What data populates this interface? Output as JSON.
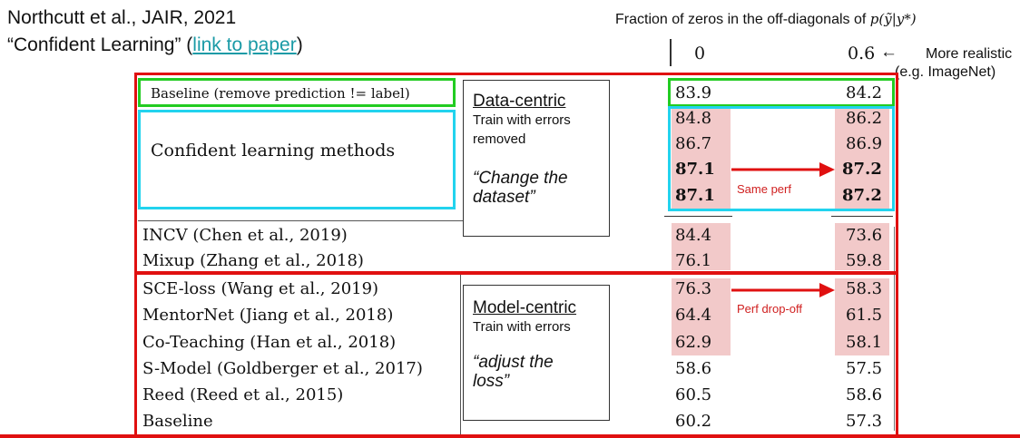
{
  "citation": {
    "line1": "Northcutt et al., JAIR, 2021",
    "line2_prefix": "“Confident Learning” (",
    "link_text": "link to paper",
    "line2_suffix": ")"
  },
  "header": {
    "caption": "Fraction of zeros in the off-diagonals of",
    "formula": "p(ỹ|y*)",
    "col1": "0",
    "col2": "0.6",
    "arrow": "←",
    "more_realistic": "More realistic",
    "example": "(e.g. ImageNet)"
  },
  "table": {
    "top_rows": [
      {
        "method": "Baseline (remove prediction != label)",
        "v1": "83.9",
        "v2": "84.2"
      },
      {
        "method": "",
        "v1": "84.8",
        "v2": "86.2"
      },
      {
        "method": "Confident learning methods",
        "v1": "86.7",
        "v2": "86.9"
      },
      {
        "method": "",
        "v1": "87.1",
        "v2": "87.2"
      },
      {
        "method": "",
        "v1": "87.1",
        "v2": "87.2"
      }
    ],
    "mid_rows": [
      {
        "method": "INCV (Chen et al., 2019)",
        "v1": "84.4",
        "v2": "73.6"
      },
      {
        "method": "Mixup (Zhang et al., 2018)",
        "v1": "76.1",
        "v2": "59.8"
      }
    ],
    "bottom_rows": [
      {
        "method": "SCE-loss (Wang et al., 2019)",
        "v1": "76.3",
        "v2": "58.3"
      },
      {
        "method": "MentorNet (Jiang et al., 2018)",
        "v1": "64.4",
        "v2": "61.5"
      },
      {
        "method": "Co-Teaching (Han et al., 2018)",
        "v1": "62.9",
        "v2": "58.1"
      },
      {
        "method": "S-Model (Goldberger et al., 2017)",
        "v1": "58.6",
        "v2": "57.5"
      },
      {
        "method": "Reed (Reed et al., 2015)",
        "v1": "60.5",
        "v2": "58.6"
      },
      {
        "method": "Baseline",
        "v1": "60.2",
        "v2": "57.3"
      }
    ]
  },
  "data_centric": {
    "title": "Data-centric",
    "line1": "Train with errors",
    "line2": "removed",
    "quote1": "“Change the",
    "quote2": "dataset”"
  },
  "model_centric": {
    "title": "Model-centric",
    "line1": "Train with errors",
    "quote1": "“adjust the",
    "quote2": "loss”"
  },
  "annotations": {
    "same_perf": "Same perf",
    "drop_off": "Perf drop-off"
  },
  "colors": {
    "red": "#e01010",
    "green": "#22cc22",
    "cyan": "#22d3ee",
    "highlight": "#f2c9c9",
    "link": "#1a9aa6"
  }
}
